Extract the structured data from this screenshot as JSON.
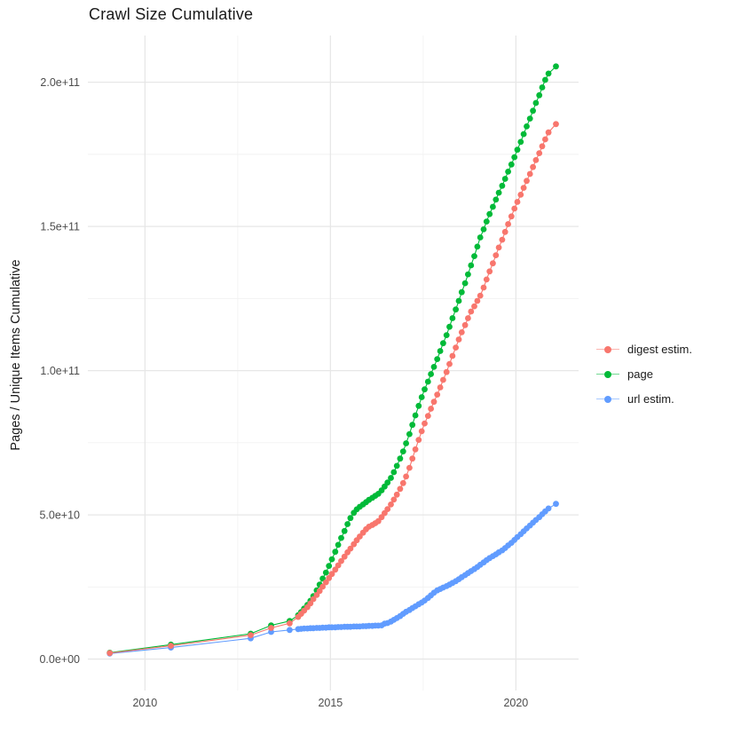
{
  "title": "Crawl Size Cumulative",
  "y_axis_label": "Pages / Unique Items Cumulative",
  "colors": {
    "digest": "#F8766D",
    "page": "#00BA38",
    "url": "#619CFF",
    "grid_major": "#e7e7e7",
    "grid_minor": "#f2f2f2",
    "tick_text": "#4d4d4d",
    "title_text": "#1a1a1a",
    "background": "#ffffff"
  },
  "legend": {
    "items": [
      {
        "label": "digest estim.",
        "color": "#F8766D"
      },
      {
        "label": "page",
        "color": "#00BA38"
      },
      {
        "label": "url estim.",
        "color": "#619CFF"
      }
    ]
  },
  "chart_data": {
    "type": "line",
    "title": "Crawl Size Cumulative",
    "xlabel": "",
    "ylabel": "Pages / Unique Items Cumulative",
    "value_unit": "1e9 (billions); y axis shown in scientific notation",
    "x_ticks": {
      "values": [
        2010,
        2015,
        2020
      ],
      "labels": [
        "2010",
        "2015",
        "2020"
      ],
      "minor": [
        2012.5,
        2017.5
      ]
    },
    "y_ticks": {
      "values_e9": [
        0,
        50,
        100,
        150,
        200
      ],
      "labels": [
        "0.0e+00",
        "5.0e+10",
        "1.0e+11",
        "1.5e+11",
        "2.0e+11"
      ],
      "minor_e9": [
        25,
        75,
        125,
        175
      ]
    },
    "x_range": [
      2008.46,
      2021.69
    ],
    "y_range_e9": [
      -10.9,
      216.2
    ],
    "grid": true,
    "legend_position": "right",
    "series": [
      {
        "name": "page",
        "color": "#00BA38",
        "points_year_value_e9": [
          [
            2009.05,
            2.2
          ],
          [
            2010.7,
            5.0
          ],
          [
            2012.85,
            8.8
          ],
          [
            2013.4,
            11.7
          ],
          [
            2013.9,
            13.2
          ],
          [
            2014.13,
            15.2
          ],
          [
            2014.21,
            16.3
          ],
          [
            2014.29,
            17.5
          ],
          [
            2014.38,
            18.8
          ],
          [
            2014.46,
            20.2
          ],
          [
            2014.54,
            21.8
          ],
          [
            2014.63,
            23.8
          ],
          [
            2014.71,
            25.8
          ],
          [
            2014.79,
            27.9
          ],
          [
            2014.88,
            30.0
          ],
          [
            2014.96,
            32.3
          ],
          [
            2015.04,
            34.6
          ],
          [
            2015.13,
            37.2
          ],
          [
            2015.21,
            39.6
          ],
          [
            2015.29,
            42.0
          ],
          [
            2015.38,
            44.4
          ],
          [
            2015.46,
            46.8
          ],
          [
            2015.54,
            48.9
          ],
          [
            2015.63,
            50.7
          ],
          [
            2015.71,
            51.9
          ],
          [
            2015.79,
            52.8
          ],
          [
            2015.88,
            53.6
          ],
          [
            2015.96,
            54.4
          ],
          [
            2016.04,
            55.2
          ],
          [
            2016.13,
            55.9
          ],
          [
            2016.21,
            56.6
          ],
          [
            2016.29,
            57.3
          ],
          [
            2016.38,
            58.5
          ],
          [
            2016.46,
            59.8
          ],
          [
            2016.54,
            61.2
          ],
          [
            2016.63,
            62.8
          ],
          [
            2016.71,
            64.8
          ],
          [
            2016.79,
            67.0
          ],
          [
            2016.88,
            69.5
          ],
          [
            2016.96,
            72.0
          ],
          [
            2017.04,
            74.8
          ],
          [
            2017.13,
            78.0
          ],
          [
            2017.21,
            81.2
          ],
          [
            2017.29,
            84.5
          ],
          [
            2017.38,
            87.8
          ],
          [
            2017.46,
            90.8
          ],
          [
            2017.54,
            93.5
          ],
          [
            2017.63,
            96.2
          ],
          [
            2017.71,
            98.8
          ],
          [
            2017.79,
            101.3
          ],
          [
            2017.88,
            104.0
          ],
          [
            2017.96,
            106.8
          ],
          [
            2018.04,
            109.5
          ],
          [
            2018.13,
            112.3
          ],
          [
            2018.21,
            115.2
          ],
          [
            2018.29,
            118.2
          ],
          [
            2018.38,
            121.2
          ],
          [
            2018.46,
            124.2
          ],
          [
            2018.54,
            127.2
          ],
          [
            2018.63,
            130.3
          ],
          [
            2018.71,
            133.4
          ],
          [
            2018.79,
            136.5
          ],
          [
            2018.88,
            139.7
          ],
          [
            2018.96,
            143.0
          ],
          [
            2019.04,
            146.2
          ],
          [
            2019.13,
            149.0
          ],
          [
            2019.21,
            151.7
          ],
          [
            2019.29,
            154.3
          ],
          [
            2019.38,
            156.8
          ],
          [
            2019.46,
            159.3
          ],
          [
            2019.54,
            161.7
          ],
          [
            2019.63,
            164.1
          ],
          [
            2019.71,
            166.5
          ],
          [
            2019.79,
            169.0
          ],
          [
            2019.88,
            171.5
          ],
          [
            2019.96,
            174.0
          ],
          [
            2020.04,
            176.6
          ],
          [
            2020.13,
            179.3
          ],
          [
            2020.21,
            182.0
          ],
          [
            2020.29,
            184.7
          ],
          [
            2020.38,
            187.4
          ],
          [
            2020.46,
            190.1
          ],
          [
            2020.54,
            192.8
          ],
          [
            2020.63,
            195.5
          ],
          [
            2020.71,
            198.2
          ],
          [
            2020.79,
            200.8
          ],
          [
            2020.88,
            203.0
          ],
          [
            2021.08,
            205.5
          ]
        ]
      },
      {
        "name": "url estim.",
        "color": "#619CFF",
        "points_year_value_e9": [
          [
            2009.05,
            1.9
          ],
          [
            2010.7,
            4.0
          ],
          [
            2012.85,
            7.2
          ],
          [
            2013.4,
            9.4
          ],
          [
            2013.9,
            10.1
          ],
          [
            2014.13,
            10.4
          ],
          [
            2014.21,
            10.5
          ],
          [
            2014.29,
            10.6
          ],
          [
            2014.38,
            10.6
          ],
          [
            2014.46,
            10.7
          ],
          [
            2014.54,
            10.7
          ],
          [
            2014.63,
            10.8
          ],
          [
            2014.71,
            10.8
          ],
          [
            2014.79,
            10.9
          ],
          [
            2014.88,
            10.9
          ],
          [
            2014.96,
            11.0
          ],
          [
            2015.04,
            11.0
          ],
          [
            2015.13,
            11.0
          ],
          [
            2015.21,
            11.1
          ],
          [
            2015.29,
            11.1
          ],
          [
            2015.38,
            11.2
          ],
          [
            2015.46,
            11.2
          ],
          [
            2015.54,
            11.2
          ],
          [
            2015.63,
            11.3
          ],
          [
            2015.71,
            11.3
          ],
          [
            2015.79,
            11.3
          ],
          [
            2015.88,
            11.4
          ],
          [
            2015.96,
            11.4
          ],
          [
            2016.04,
            11.5
          ],
          [
            2016.13,
            11.5
          ],
          [
            2016.21,
            11.6
          ],
          [
            2016.29,
            11.6
          ],
          [
            2016.38,
            11.7
          ],
          [
            2016.46,
            12.3
          ],
          [
            2016.54,
            12.5
          ],
          [
            2016.63,
            13.0
          ],
          [
            2016.71,
            13.6
          ],
          [
            2016.79,
            14.2
          ],
          [
            2016.88,
            14.9
          ],
          [
            2016.96,
            15.7
          ],
          [
            2017.04,
            16.4
          ],
          [
            2017.13,
            17.0
          ],
          [
            2017.21,
            17.7
          ],
          [
            2017.29,
            18.3
          ],
          [
            2017.38,
            19.0
          ],
          [
            2017.46,
            19.6
          ],
          [
            2017.54,
            20.3
          ],
          [
            2017.63,
            21.2
          ],
          [
            2017.71,
            22.1
          ],
          [
            2017.79,
            23.0
          ],
          [
            2017.88,
            23.8
          ],
          [
            2017.96,
            24.3
          ],
          [
            2018.04,
            24.8
          ],
          [
            2018.13,
            25.3
          ],
          [
            2018.21,
            25.8
          ],
          [
            2018.29,
            26.4
          ],
          [
            2018.38,
            27.0
          ],
          [
            2018.46,
            27.7
          ],
          [
            2018.54,
            28.4
          ],
          [
            2018.63,
            29.1
          ],
          [
            2018.71,
            29.8
          ],
          [
            2018.79,
            30.5
          ],
          [
            2018.88,
            31.2
          ],
          [
            2018.96,
            31.9
          ],
          [
            2019.04,
            32.7
          ],
          [
            2019.13,
            33.5
          ],
          [
            2019.21,
            34.3
          ],
          [
            2019.29,
            35.0
          ],
          [
            2019.38,
            35.7
          ],
          [
            2019.46,
            36.3
          ],
          [
            2019.54,
            37.0
          ],
          [
            2019.63,
            37.7
          ],
          [
            2019.71,
            38.5
          ],
          [
            2019.79,
            39.4
          ],
          [
            2019.88,
            40.3
          ],
          [
            2019.96,
            41.3
          ],
          [
            2020.04,
            42.3
          ],
          [
            2020.13,
            43.3
          ],
          [
            2020.21,
            44.3
          ],
          [
            2020.29,
            45.3
          ],
          [
            2020.38,
            46.3
          ],
          [
            2020.46,
            47.3
          ],
          [
            2020.54,
            48.2
          ],
          [
            2020.63,
            49.2
          ],
          [
            2020.71,
            50.2
          ],
          [
            2020.79,
            51.2
          ],
          [
            2020.88,
            52.2
          ],
          [
            2021.08,
            53.8
          ]
        ]
      },
      {
        "name": "digest estim.",
        "color": "#F8766D",
        "points_year_value_e9": [
          [
            2009.05,
            2.1
          ],
          [
            2010.7,
            4.6
          ],
          [
            2012.85,
            8.3
          ],
          [
            2013.4,
            10.8
          ],
          [
            2013.9,
            12.4
          ],
          [
            2014.13,
            14.6
          ],
          [
            2014.21,
            15.7
          ],
          [
            2014.29,
            16.8
          ],
          [
            2014.38,
            18.0
          ],
          [
            2014.46,
            19.3
          ],
          [
            2014.54,
            20.8
          ],
          [
            2014.63,
            22.2
          ],
          [
            2014.71,
            23.6
          ],
          [
            2014.79,
            25.1
          ],
          [
            2014.88,
            26.6
          ],
          [
            2014.96,
            28.1
          ],
          [
            2015.04,
            29.5
          ],
          [
            2015.13,
            31.0
          ],
          [
            2015.21,
            32.5
          ],
          [
            2015.29,
            34.0
          ],
          [
            2015.38,
            35.5
          ],
          [
            2015.46,
            37.0
          ],
          [
            2015.54,
            38.3
          ],
          [
            2015.63,
            39.8
          ],
          [
            2015.71,
            41.2
          ],
          [
            2015.79,
            42.5
          ],
          [
            2015.88,
            43.8
          ],
          [
            2015.96,
            45.0
          ],
          [
            2016.04,
            45.9
          ],
          [
            2016.13,
            46.5
          ],
          [
            2016.21,
            47.1
          ],
          [
            2016.29,
            47.8
          ],
          [
            2016.38,
            49.2
          ],
          [
            2016.46,
            50.6
          ],
          [
            2016.54,
            52.0
          ],
          [
            2016.63,
            53.6
          ],
          [
            2016.71,
            55.3
          ],
          [
            2016.79,
            57.0
          ],
          [
            2016.88,
            59.0
          ],
          [
            2016.96,
            61.0
          ],
          [
            2017.04,
            63.3
          ],
          [
            2017.13,
            66.3
          ],
          [
            2017.21,
            69.5
          ],
          [
            2017.29,
            72.7
          ],
          [
            2017.38,
            76.0
          ],
          [
            2017.46,
            79.0
          ],
          [
            2017.54,
            81.7
          ],
          [
            2017.63,
            84.3
          ],
          [
            2017.71,
            86.8
          ],
          [
            2017.79,
            89.2
          ],
          [
            2017.88,
            91.7
          ],
          [
            2017.96,
            94.2
          ],
          [
            2018.04,
            96.8
          ],
          [
            2018.13,
            99.5
          ],
          [
            2018.21,
            102.3
          ],
          [
            2018.29,
            105.1
          ],
          [
            2018.38,
            108.0
          ],
          [
            2018.46,
            110.8
          ],
          [
            2018.54,
            113.3
          ],
          [
            2018.63,
            115.8
          ],
          [
            2018.71,
            118.2
          ],
          [
            2018.79,
            120.5
          ],
          [
            2018.88,
            122.3
          ],
          [
            2018.96,
            124.2
          ],
          [
            2019.04,
            126.0
          ],
          [
            2019.13,
            128.8
          ],
          [
            2019.21,
            131.6
          ],
          [
            2019.29,
            134.4
          ],
          [
            2019.38,
            137.2
          ],
          [
            2019.46,
            140.0
          ],
          [
            2019.54,
            142.7
          ],
          [
            2019.63,
            145.4
          ],
          [
            2019.71,
            148.1
          ],
          [
            2019.79,
            150.8
          ],
          [
            2019.88,
            153.5
          ],
          [
            2019.96,
            156.2
          ],
          [
            2020.04,
            158.5
          ],
          [
            2020.13,
            161.0
          ],
          [
            2020.21,
            163.4
          ],
          [
            2020.29,
            165.8
          ],
          [
            2020.38,
            168.2
          ],
          [
            2020.46,
            170.6
          ],
          [
            2020.54,
            173.0
          ],
          [
            2020.63,
            175.4
          ],
          [
            2020.71,
            177.8
          ],
          [
            2020.79,
            180.2
          ],
          [
            2020.88,
            182.6
          ],
          [
            2021.08,
            185.5
          ]
        ]
      }
    ]
  }
}
